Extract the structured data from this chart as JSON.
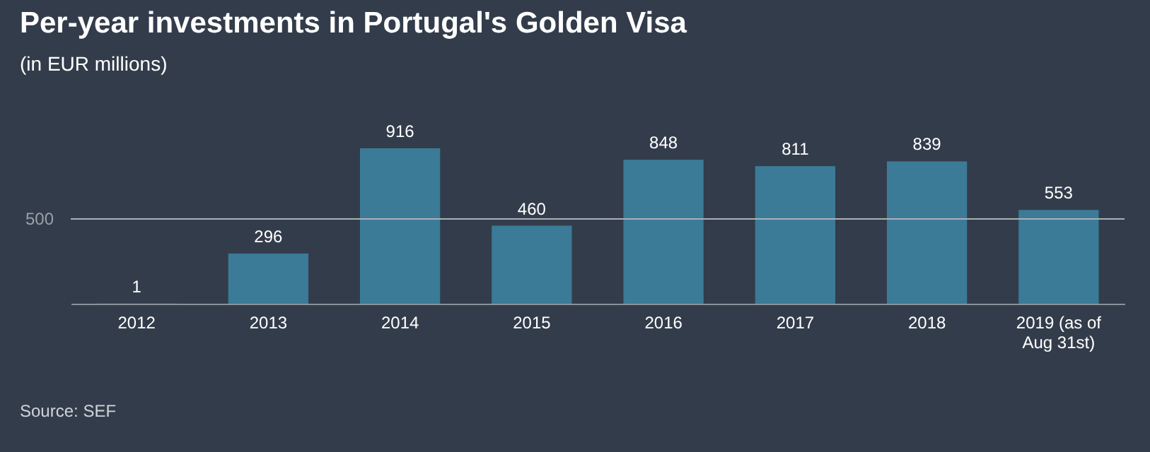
{
  "chart_data": {
    "type": "bar",
    "title": "Per-year investments in Portugal's Golden Visa",
    "subtitle": "(in EUR millions)",
    "categories": [
      "2012",
      "2013",
      "2014",
      "2015",
      "2016",
      "2017",
      "2018",
      "2019 (as of Aug 31st)"
    ],
    "values": [
      1,
      296,
      916,
      460,
      848,
      811,
      839,
      553
    ],
    "color": "#3b7b97",
    "ref_lines": [
      {
        "axis": "y",
        "value": 500,
        "label": "500"
      }
    ],
    "data_labels": true,
    "annotations": [
      "Source: SEF"
    ]
  }
}
